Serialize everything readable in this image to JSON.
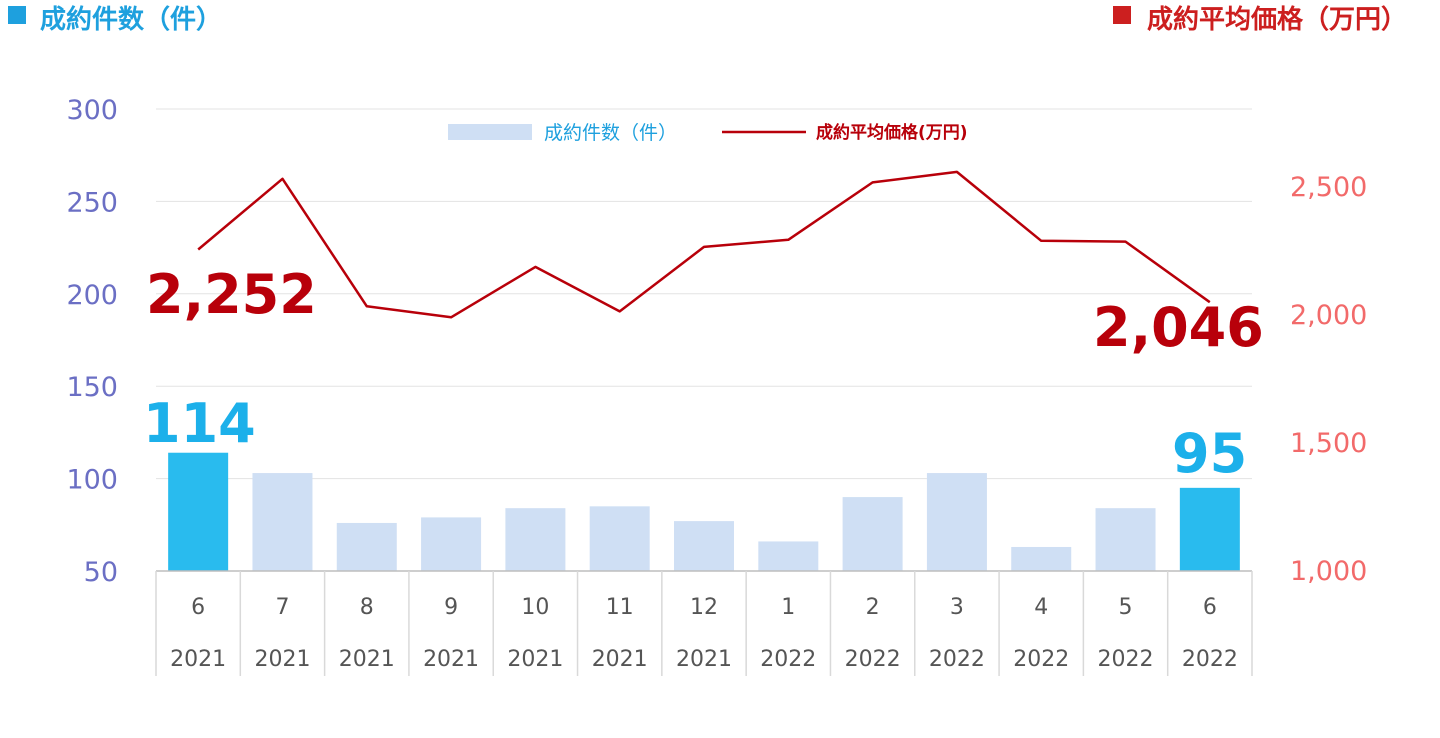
{
  "header": {
    "left_title": "成約件数（件）",
    "right_title": "成約平均価格（万円）",
    "left_color": "#1ea0de",
    "right_color": "#cc1f1f"
  },
  "chart_data": {
    "type": "bar+line",
    "categories": [
      {
        "month": "6",
        "year": "2021"
      },
      {
        "month": "7",
        "year": "2021"
      },
      {
        "month": "8",
        "year": "2021"
      },
      {
        "month": "9",
        "year": "2021"
      },
      {
        "month": "10",
        "year": "2021"
      },
      {
        "month": "11",
        "year": "2021"
      },
      {
        "month": "12",
        "year": "2021"
      },
      {
        "month": "1",
        "year": "2022"
      },
      {
        "month": "2",
        "year": "2022"
      },
      {
        "month": "3",
        "year": "2022"
      },
      {
        "month": "4",
        "year": "2022"
      },
      {
        "month": "5",
        "year": "2022"
      },
      {
        "month": "6",
        "year": "2022"
      }
    ],
    "series": [
      {
        "name": "成約件数（件）",
        "type": "bar",
        "axis": "left",
        "values": [
          114,
          103,
          76,
          79,
          84,
          85,
          77,
          66,
          90,
          103,
          63,
          84,
          95
        ],
        "color": "#cfdff4",
        "highlight_color": "#29bbee",
        "highlight_indices": [
          0,
          12
        ]
      },
      {
        "name": "成約平均価格(万円)",
        "type": "line",
        "axis": "right",
        "values": [
          2252,
          2528,
          2030,
          1987,
          2184,
          2010,
          2262,
          2290,
          2514,
          2555,
          2286,
          2283,
          2046
        ],
        "color": "#b8000a"
      }
    ],
    "left_axis": {
      "ticks": [
        "300",
        "250",
        "200",
        "150",
        "100",
        "50"
      ],
      "range": [
        50,
        300
      ]
    },
    "right_axis": {
      "ticks": [
        "2,500",
        "2,000",
        "1,500",
        "1,000"
      ],
      "range": [
        1000,
        2800
      ]
    },
    "annotations": {
      "line_first": "2,252",
      "line_last": "2,046",
      "bar_first": "114",
      "bar_last": "95"
    },
    "grid": true,
    "legend_position": "top-center"
  }
}
